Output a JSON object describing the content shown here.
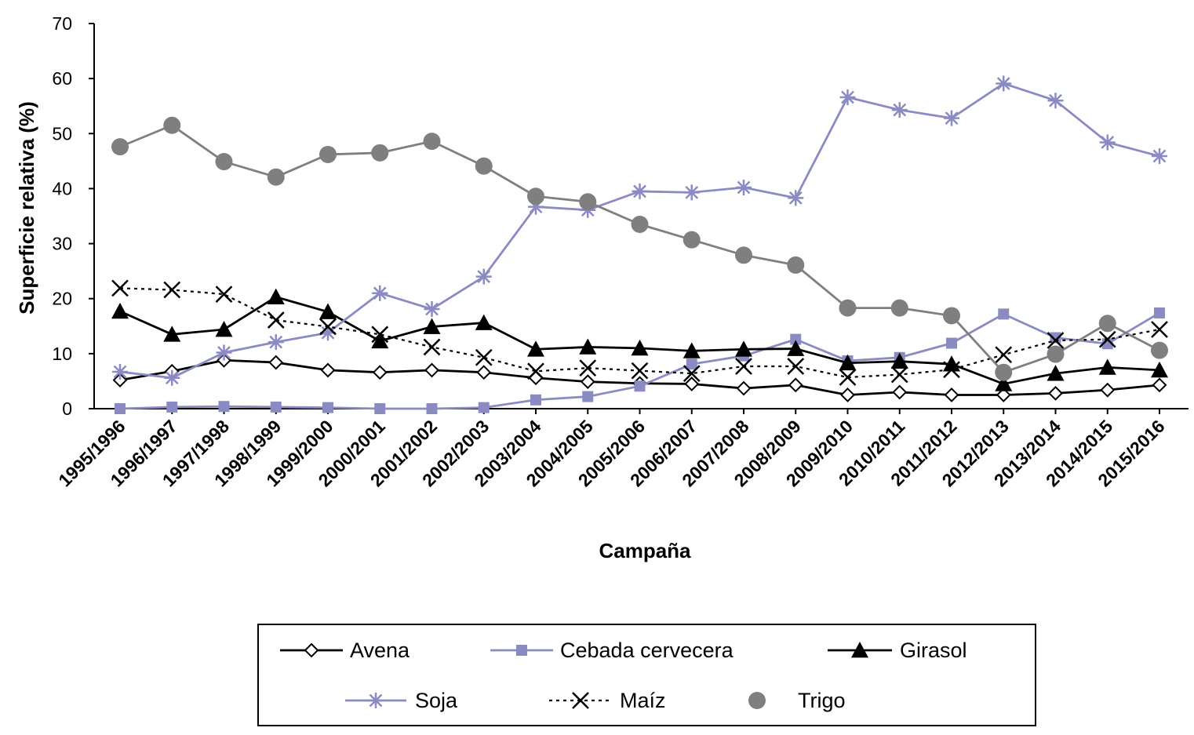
{
  "chart_data": {
    "type": "line",
    "title": "",
    "xlabel": "Campaña",
    "ylabel": "Superficie relativa (%)",
    "ylim": [
      0,
      70
    ],
    "yticks": [
      0,
      10,
      20,
      30,
      40,
      50,
      60,
      70
    ],
    "grid": false,
    "legend_position": "bottom",
    "categories": [
      "1995/1996",
      "1996/1997",
      "1997/1998",
      "1998/1999",
      "1999/2000",
      "2000/2001",
      "2001/2002",
      "2002/2003",
      "2003/2004",
      "2004/2005",
      "2005/2006",
      "2006/2007",
      "2007/2008",
      "2008/2009",
      "2009/2010",
      "2010/2011",
      "2011/2012",
      "2012/2013",
      "2013/2014",
      "2014/2015",
      "2015/2016"
    ],
    "series": [
      {
        "name": "Avena",
        "color": "#000000",
        "marker": "diamond-open",
        "line": "solid",
        "values": [
          5.2,
          6.8,
          8.8,
          8.4,
          7.0,
          6.6,
          7.0,
          6.6,
          5.6,
          4.9,
          4.6,
          4.5,
          3.7,
          4.3,
          2.5,
          3.0,
          2.5,
          2.5,
          2.8,
          3.4,
          4.3
        ]
      },
      {
        "name": "Cebada cervecera",
        "color": "#8b8bc3",
        "marker": "square",
        "line": "solid",
        "values": [
          0.0,
          0.3,
          0.4,
          0.3,
          0.2,
          0.0,
          0.0,
          0.2,
          1.6,
          2.2,
          4.1,
          8.1,
          9.6,
          12.6,
          8.7,
          9.3,
          11.9,
          17.2,
          12.9,
          11.8,
          17.4
        ]
      },
      {
        "name": "Girasol",
        "color": "#000000",
        "marker": "triangle",
        "line": "solid",
        "values": [
          17.7,
          13.5,
          14.4,
          20.3,
          17.6,
          12.3,
          14.9,
          15.6,
          10.8,
          11.2,
          11.0,
          10.5,
          10.8,
          10.9,
          8.3,
          8.6,
          8.1,
          4.5,
          6.4,
          7.5,
          7.0
        ]
      },
      {
        "name": "Soja",
        "color": "#8b8bc3",
        "marker": "asterisk",
        "line": "solid",
        "values": [
          6.7,
          5.6,
          10.2,
          12.1,
          13.8,
          21.0,
          18.1,
          24.0,
          36.7,
          36.1,
          39.5,
          39.3,
          40.2,
          38.3,
          56.6,
          54.3,
          52.8,
          59.1,
          56.0,
          48.4,
          45.9
        ]
      },
      {
        "name": "Maíz",
        "color": "#000000",
        "marker": "x",
        "line": "dotted",
        "values": [
          21.9,
          21.6,
          20.8,
          16.1,
          14.9,
          13.5,
          11.2,
          9.3,
          6.8,
          7.4,
          6.9,
          6.4,
          7.7,
          7.7,
          5.7,
          6.2,
          7.1,
          9.8,
          12.4,
          12.6,
          14.4
        ]
      },
      {
        "name": "Trigo",
        "color": "#7f7f7f",
        "marker": "circle",
        "line": "solid",
        "values": [
          47.6,
          51.5,
          44.9,
          42.1,
          46.2,
          46.5,
          48.6,
          44.1,
          38.6,
          37.6,
          33.5,
          30.7,
          27.9,
          26.1,
          18.3,
          18.3,
          16.9,
          6.6,
          9.9,
          15.5,
          10.6
        ]
      }
    ]
  }
}
